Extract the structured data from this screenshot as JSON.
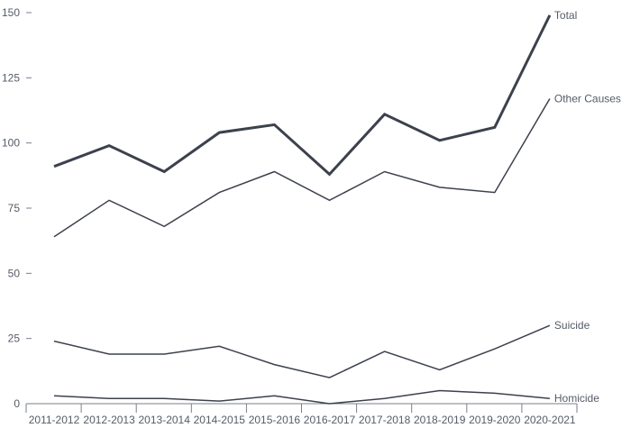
{
  "chart_data": {
    "type": "line",
    "title": "",
    "xlabel": "",
    "ylabel": "",
    "ylim": [
      0,
      150
    ],
    "yticks": [
      0,
      25,
      50,
      75,
      100,
      125,
      150
    ],
    "grid": false,
    "legend": "none",
    "categories": [
      "2011-2012",
      "2012-2013",
      "2013-2014",
      "2014-2015",
      "2015-2016",
      "2016-2017",
      "2017-2018",
      "2018-2019",
      "2019-2020",
      "2020-2021"
    ],
    "series": [
      {
        "name": "Total",
        "values": [
          91,
          99,
          89,
          104,
          107,
          88,
          111,
          101,
          106,
          149
        ],
        "color": "#3c414d",
        "emphasis": "thick"
      },
      {
        "name": "Other Causes",
        "values": [
          64,
          78,
          68,
          81,
          89,
          78,
          89,
          83,
          81,
          117
        ],
        "color": "#3c414d",
        "emphasis": "normal"
      },
      {
        "name": "Suicide",
        "values": [
          24,
          19,
          19,
          22,
          15,
          10,
          20,
          13,
          21,
          30
        ],
        "color": "#3c414d",
        "emphasis": "normal"
      },
      {
        "name": "Homicide",
        "values": [
          3,
          2,
          2,
          1,
          3,
          0,
          2,
          5,
          4,
          2
        ],
        "color": "#3c414d",
        "emphasis": "normal"
      }
    ],
    "axis_color": "#7a7f88"
  }
}
